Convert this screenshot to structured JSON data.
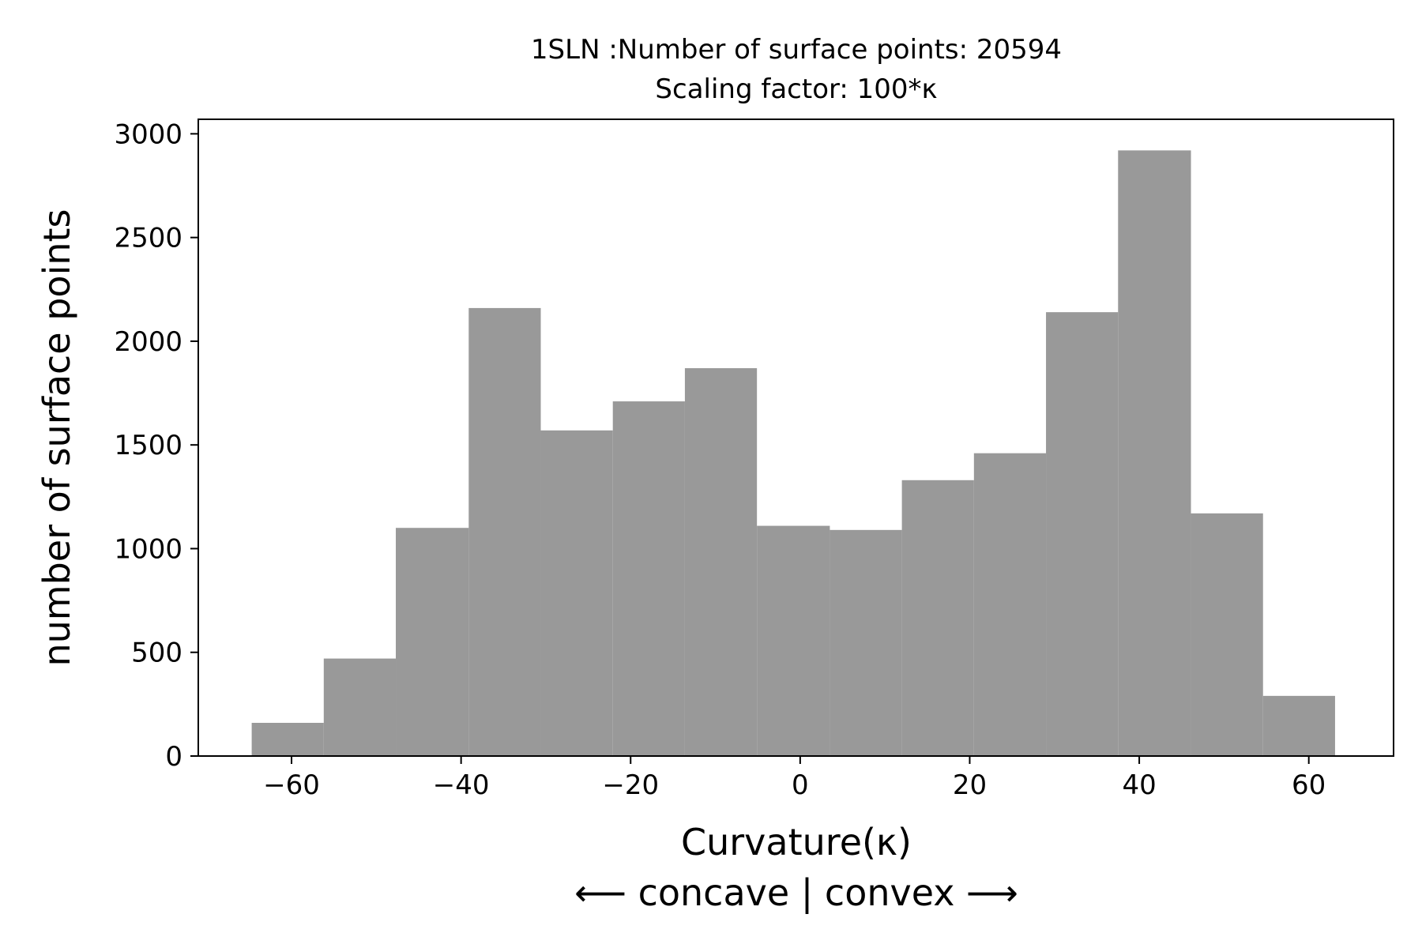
{
  "chart_data": {
    "type": "bar",
    "title_line1": "1SLN :Number of surface points: 20594",
    "title_line2": "Scaling factor: 100*κ",
    "xlabel": "Curvature(κ)",
    "xlabel_line2": "⟵ concave | convex ⟶",
    "ylabel": "number of surface points",
    "xlim": [
      -71,
      70
    ],
    "ylim": [
      0,
      3070
    ],
    "xticks": [
      -60,
      -40,
      -20,
      0,
      20,
      40,
      60
    ],
    "xtick_labels": [
      "−60",
      "−40",
      "−20",
      "0",
      "20",
      "40",
      "60"
    ],
    "yticks": [
      0,
      500,
      1000,
      1500,
      2000,
      2500,
      3000
    ],
    "ytick_labels": [
      "0",
      "500",
      "1000",
      "1500",
      "2000",
      "2500",
      "3000"
    ],
    "bins": [
      {
        "x0": -64.7,
        "x1": -56.2,
        "value": 160
      },
      {
        "x0": -56.2,
        "x1": -47.7,
        "value": 470
      },
      {
        "x0": -47.7,
        "x1": -39.1,
        "value": 1100
      },
      {
        "x0": -39.1,
        "x1": -30.6,
        "value": 2160
      },
      {
        "x0": -30.6,
        "x1": -22.1,
        "value": 1570
      },
      {
        "x0": -22.1,
        "x1": -13.6,
        "value": 1710
      },
      {
        "x0": -13.6,
        "x1": -5.1,
        "value": 1870
      },
      {
        "x0": -5.1,
        "x1": 3.5,
        "value": 1110
      },
      {
        "x0": 3.5,
        "x1": 12.0,
        "value": 1090
      },
      {
        "x0": 12.0,
        "x1": 20.5,
        "value": 1330
      },
      {
        "x0": 20.5,
        "x1": 29.0,
        "value": 1460
      },
      {
        "x0": 29.0,
        "x1": 37.5,
        "value": 2140
      },
      {
        "x0": 37.5,
        "x1": 46.1,
        "value": 2920
      },
      {
        "x0": 46.1,
        "x1": 54.6,
        "value": 1170
      },
      {
        "x0": 54.6,
        "x1": 63.1,
        "value": 290
      }
    ],
    "bar_color": "#999999",
    "grid": false,
    "legend": "none"
  }
}
